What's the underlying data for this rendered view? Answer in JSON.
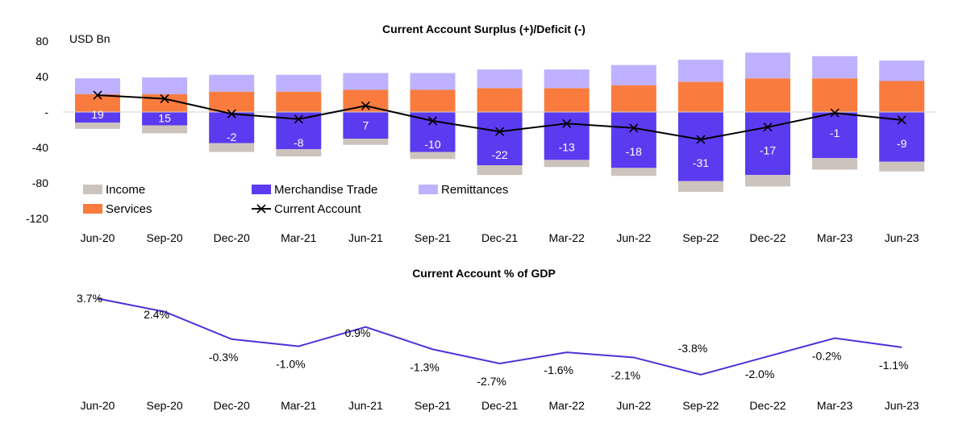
{
  "chart_data": [
    {
      "type": "bar",
      "title": "Current Account Surplus (+)/Deficit (-)",
      "ylabel": "USD Bn",
      "ylim": [
        -120,
        80
      ],
      "yticks": [
        80,
        40,
        0,
        -40,
        -80,
        -120
      ],
      "ytick_labels": [
        "80",
        "40",
        "-",
        "-40",
        "-80",
        "-120"
      ],
      "categories": [
        "Jun-20",
        "Sep-20",
        "Dec-20",
        "Mar-21",
        "Jun-21",
        "Sep-21",
        "Dec-21",
        "Mar-22",
        "Jun-22",
        "Sep-22",
        "Dec-22",
        "Mar-23",
        "Jun-23"
      ],
      "stacked": true,
      "legend_position": "bottom-left",
      "series": [
        {
          "name": "Income",
          "color": "#cdc3bd",
          "values": [
            -7,
            -9,
            -10,
            -8,
            -7,
            -8,
            -11,
            -8,
            -9,
            -12,
            -13,
            -13,
            -11
          ]
        },
        {
          "name": "Merchandise Trade",
          "color": "#5b3bf0",
          "values": [
            -12,
            -15,
            -35,
            -42,
            -30,
            -45,
            -60,
            -54,
            -63,
            -78,
            -71,
            -52,
            -56
          ]
        },
        {
          "name": "Remittances",
          "color": "#bfb1ff",
          "values": [
            18,
            19,
            19,
            19,
            19,
            19,
            21,
            21,
            23,
            25,
            29,
            25,
            23
          ]
        },
        {
          "name": "Services",
          "color": "#f97c3e",
          "values": [
            20,
            20,
            23,
            23,
            25,
            25,
            27,
            27,
            30,
            34,
            38,
            38,
            35
          ]
        },
        {
          "name": "Current Account",
          "color": "#000000",
          "type": "line",
          "marker": "x",
          "values": [
            19,
            15,
            -2,
            -8,
            7,
            -10,
            -22,
            -13,
            -18,
            -31,
            -17,
            -1,
            -9
          ]
        }
      ],
      "data_labels": [
        "19",
        "15",
        "-2",
        "-8",
        "7",
        "-10",
        "-22",
        "-13",
        "-18",
        "-31",
        "-17",
        "-1",
        "-9"
      ]
    },
    {
      "type": "line",
      "title": "Current Account % of GDP",
      "categories": [
        "Jun-20",
        "Sep-20",
        "Dec-20",
        "Mar-21",
        "Jun-21",
        "Sep-21",
        "Dec-21",
        "Mar-22",
        "Jun-22",
        "Sep-22",
        "Dec-22",
        "Mar-23",
        "Jun-23"
      ],
      "series": [
        {
          "name": "Current Account % of GDP",
          "color": "#4a32d8",
          "values": [
            3.7,
            2.4,
            -0.3,
            -1.0,
            0.9,
            -1.3,
            -2.7,
            -1.6,
            -2.1,
            -3.8,
            -2.0,
            -0.2,
            -1.1
          ]
        }
      ],
      "data_labels": [
        "3.7%",
        "2.4%",
        "-0.3%",
        "-1.0%",
        "0.9%",
        "-1.3%",
        "-2.7%",
        "-1.6%",
        "-2.1%",
        "-3.8%",
        "-2.0%",
        "-0.2%",
        "-1.1%"
      ]
    }
  ]
}
